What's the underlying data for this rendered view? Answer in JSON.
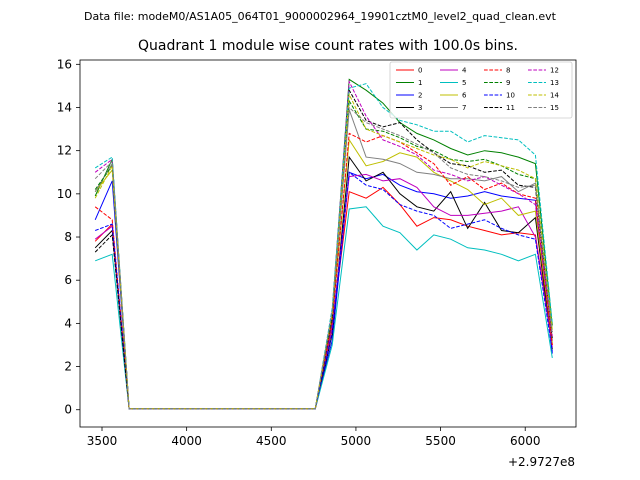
{
  "chart_data": {
    "type": "line",
    "suptitle": "Data file: modeM0/AS1A05_064T01_9000002964_19901cztM0_level2_quad_clean.evt",
    "title": "Quadrant 1 module wise count rates with 100.0s bins.",
    "xlabel": "",
    "ylabel": "",
    "offset_label": "+2.9727e8",
    "xlim": [
      3370,
      6300
    ],
    "ylim": [
      -0.8,
      16.2
    ],
    "xticks": [
      3500,
      4000,
      4500,
      5000,
      5500,
      6000
    ],
    "yticks": [
      0,
      2,
      4,
      6,
      8,
      10,
      12,
      14,
      16
    ],
    "x": [
      3460,
      3560,
      3660,
      3760,
      3860,
      3960,
      4060,
      4160,
      4260,
      4360,
      4460,
      4560,
      4660,
      4760,
      4860,
      4960,
      5060,
      5160,
      5260,
      5360,
      5460,
      5560,
      5660,
      5760,
      5860,
      5960,
      6060,
      6160
    ],
    "legend_loc": "upper right",
    "series": [
      {
        "name": "0",
        "color": "#ff0000",
        "dash": "solid",
        "values": [
          7.8,
          8.6,
          0.05,
          0.05,
          0.05,
          0.05,
          0.05,
          0.05,
          0.05,
          0.05,
          0.05,
          0.05,
          0.05,
          0.05,
          3.8,
          10.1,
          9.8,
          10.3,
          9.5,
          8.5,
          8.9,
          8.8,
          8.5,
          8.3,
          8.1,
          8.2,
          8.1,
          3.0
        ]
      },
      {
        "name": "1",
        "color": "#008000",
        "dash": "solid",
        "values": [
          9.9,
          11.6,
          0.05,
          0.05,
          0.05,
          0.05,
          0.05,
          0.05,
          0.05,
          0.05,
          0.05,
          0.05,
          0.05,
          0.05,
          4.5,
          15.3,
          14.8,
          14.2,
          13.3,
          12.8,
          12.5,
          12.1,
          11.8,
          12.0,
          11.9,
          11.7,
          11.4,
          3.9
        ]
      },
      {
        "name": "2",
        "color": "#0000ff",
        "dash": "solid",
        "values": [
          8.8,
          10.6,
          0.05,
          0.05,
          0.05,
          0.05,
          0.05,
          0.05,
          0.05,
          0.05,
          0.05,
          0.05,
          0.05,
          0.05,
          3.2,
          11.0,
          10.7,
          10.9,
          10.4,
          10.1,
          10.0,
          9.8,
          9.9,
          10.1,
          9.9,
          9.8,
          9.7,
          2.6
        ]
      },
      {
        "name": "3",
        "color": "#000000",
        "dash": "solid",
        "values": [
          7.5,
          8.3,
          0.05,
          0.05,
          0.05,
          0.05,
          0.05,
          0.05,
          0.05,
          0.05,
          0.05,
          0.05,
          0.05,
          0.05,
          3.5,
          11.7,
          10.6,
          11.0,
          10.0,
          9.4,
          9.2,
          10.1,
          8.4,
          9.6,
          8.3,
          8.2,
          8.9,
          2.8
        ]
      },
      {
        "name": "4",
        "color": "#bf00bf",
        "dash": "solid",
        "values": [
          7.9,
          8.5,
          0.05,
          0.05,
          0.05,
          0.05,
          0.05,
          0.05,
          0.05,
          0.05,
          0.05,
          0.05,
          0.05,
          0.05,
          3.9,
          10.8,
          10.9,
          10.6,
          10.7,
          10.3,
          9.4,
          9.0,
          9.0,
          9.1,
          9.2,
          9.4,
          8.0,
          2.9
        ]
      },
      {
        "name": "5",
        "color": "#00bfbf",
        "dash": "solid",
        "values": [
          6.9,
          7.2,
          0.05,
          0.05,
          0.05,
          0.05,
          0.05,
          0.05,
          0.05,
          0.05,
          0.05,
          0.05,
          0.05,
          0.05,
          3.0,
          9.3,
          9.4,
          8.5,
          8.2,
          7.4,
          8.1,
          7.9,
          7.5,
          7.4,
          7.2,
          6.9,
          7.2,
          2.4
        ]
      },
      {
        "name": "6",
        "color": "#bfbf00",
        "dash": "solid",
        "values": [
          10.1,
          11.1,
          0.05,
          0.05,
          0.05,
          0.05,
          0.05,
          0.05,
          0.05,
          0.05,
          0.05,
          0.05,
          0.05,
          0.05,
          4.2,
          12.5,
          11.3,
          11.5,
          11.9,
          11.7,
          11.0,
          10.6,
          10.2,
          9.5,
          9.8,
          9.0,
          9.2,
          3.1
        ]
      },
      {
        "name": "7",
        "color": "#808080",
        "dash": "solid",
        "values": [
          10.1,
          11.4,
          0.05,
          0.05,
          0.05,
          0.05,
          0.05,
          0.05,
          0.05,
          0.05,
          0.05,
          0.05,
          0.05,
          0.05,
          4.3,
          13.9,
          11.7,
          11.6,
          11.4,
          11.0,
          10.9,
          10.7,
          10.7,
          10.6,
          10.8,
          10.1,
          10.5,
          3.2
        ]
      },
      {
        "name": "8",
        "color": "#ff0000",
        "dash": "dashed",
        "values": [
          9.4,
          8.8,
          0.05,
          0.05,
          0.05,
          0.05,
          0.05,
          0.05,
          0.05,
          0.05,
          0.05,
          0.05,
          0.05,
          0.05,
          4.1,
          12.8,
          12.4,
          12.7,
          12.4,
          11.9,
          11.4,
          10.4,
          10.8,
          10.2,
          10.5,
          10.0,
          9.8,
          3.0
        ]
      },
      {
        "name": "9",
        "color": "#008000",
        "dash": "dashed",
        "values": [
          10.2,
          11.3,
          0.05,
          0.05,
          0.05,
          0.05,
          0.05,
          0.05,
          0.05,
          0.05,
          0.05,
          0.05,
          0.05,
          0.05,
          4.4,
          14.3,
          13.0,
          12.9,
          12.6,
          12.2,
          12.0,
          11.6,
          11.5,
          11.6,
          11.3,
          10.9,
          10.7,
          3.6
        ]
      },
      {
        "name": "10",
        "color": "#0000ff",
        "dash": "dashed",
        "values": [
          8.3,
          8.6,
          0.05,
          0.05,
          0.05,
          0.05,
          0.05,
          0.05,
          0.05,
          0.05,
          0.05,
          0.05,
          0.05,
          0.05,
          3.6,
          11.0,
          10.4,
          10.2,
          9.5,
          9.2,
          9.0,
          8.4,
          8.6,
          8.8,
          8.4,
          8.1,
          7.9,
          2.7
        ]
      },
      {
        "name": "11",
        "color": "#000000",
        "dash": "dashed",
        "values": [
          7.3,
          8.1,
          0.05,
          0.05,
          0.05,
          0.05,
          0.05,
          0.05,
          0.05,
          0.05,
          0.05,
          0.05,
          0.05,
          0.05,
          4.2,
          14.8,
          13.4,
          13.1,
          13.3,
          12.5,
          11.9,
          11.4,
          11.3,
          11.0,
          11.1,
          10.4,
          10.3,
          3.3
        ]
      },
      {
        "name": "12",
        "color": "#bf00bf",
        "dash": "dashed",
        "values": [
          11.0,
          11.6,
          0.05,
          0.05,
          0.05,
          0.05,
          0.05,
          0.05,
          0.05,
          0.05,
          0.05,
          0.05,
          0.05,
          0.05,
          4.6,
          15.2,
          13.6,
          12.5,
          12.2,
          11.8,
          11.1,
          10.9,
          10.6,
          10.8,
          10.4,
          10.0,
          9.5,
          3.4
        ]
      },
      {
        "name": "13",
        "color": "#00bfbf",
        "dash": "dashed",
        "values": [
          11.2,
          11.7,
          0.05,
          0.05,
          0.05,
          0.05,
          0.05,
          0.05,
          0.05,
          0.05,
          0.05,
          0.05,
          0.05,
          0.05,
          4.7,
          14.9,
          15.1,
          14.0,
          13.4,
          13.2,
          12.9,
          12.9,
          12.4,
          12.7,
          12.6,
          12.5,
          11.8,
          4.0
        ]
      },
      {
        "name": "14",
        "color": "#bfbf00",
        "dash": "dashed",
        "values": [
          9.8,
          11.3,
          0.05,
          0.05,
          0.05,
          0.05,
          0.05,
          0.05,
          0.05,
          0.05,
          0.05,
          0.05,
          0.05,
          0.05,
          4.4,
          14.6,
          13.0,
          12.7,
          12.4,
          12.1,
          11.8,
          11.6,
          11.2,
          11.5,
          11.3,
          11.1,
          10.7,
          3.7
        ]
      },
      {
        "name": "15",
        "color": "#808080",
        "dash": "dashed",
        "values": [
          10.7,
          11.5,
          0.05,
          0.05,
          0.05,
          0.05,
          0.05,
          0.05,
          0.05,
          0.05,
          0.05,
          0.05,
          0.05,
          0.05,
          4.5,
          14.0,
          13.3,
          13.0,
          12.7,
          12.3,
          11.9,
          11.2,
          10.9,
          10.8,
          10.6,
          10.3,
          10.4,
          3.5
        ]
      }
    ]
  }
}
